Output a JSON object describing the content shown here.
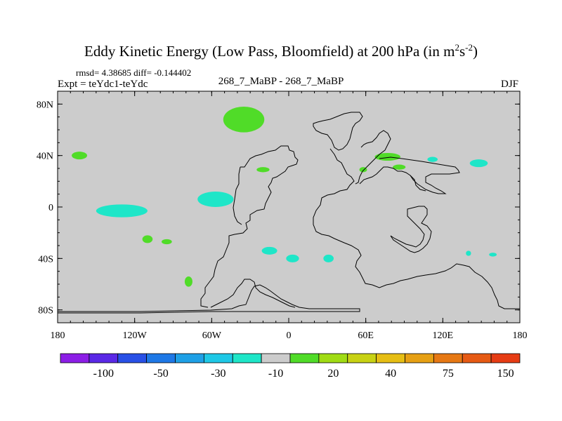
{
  "title_main": "Eddy Kinetic Energy (Low Pass, Bloomfield) at 200 hPa (in m",
  "title_sup1": "2",
  "title_mid": "s",
  "title_sup2": "-2",
  "title_end": ")",
  "stats": "rmsd= 4.38685 diff= -0.144402",
  "expt": "Expt = teYdc1-teYdc",
  "center_label": "268_7_MaBP - 268_7_MaBP",
  "season": "DJF",
  "chart_data": {
    "type": "heatmap",
    "title": "Eddy Kinetic Energy (Low Pass, Bloomfield) at 200 hPa (in m2s-2)",
    "xlabel": "",
    "ylabel": "",
    "xlim": [
      -180,
      180
    ],
    "ylim": [
      -90,
      90
    ],
    "x_ticks": [
      -180,
      -120,
      -60,
      0,
      60,
      120,
      180
    ],
    "x_tick_labels": [
      "180",
      "120W",
      "60W",
      "0",
      "60E",
      "120E",
      "180"
    ],
    "y_ticks": [
      80,
      40,
      0,
      -40,
      -80
    ],
    "y_tick_labels": [
      "80N",
      "40N",
      "0",
      "40S",
      "80S"
    ],
    "background_level": "-10 to 20",
    "colorbar": {
      "colors": [
        "#8c1ee6",
        "#5a28e6",
        "#2850e6",
        "#1e78e6",
        "#1ea0e6",
        "#1ec8e6",
        "#1ee6c8",
        "#cccccc",
        "#50dc28",
        "#a0dc14",
        "#c8d214",
        "#e6be14",
        "#e6a014",
        "#e67814",
        "#e65a14",
        "#e63c14"
      ],
      "label_positions": [
        1.5,
        3.5,
        5.5,
        7.5,
        9.5,
        11.5,
        13.5,
        15.5
      ],
      "labels": [
        "-100",
        "-50",
        "-30",
        "-10",
        "20",
        "40",
        "75",
        "150"
      ]
    },
    "anomalies": [
      {
        "lon": -163,
        "lat": 40,
        "rlon": 6,
        "rlat": 3,
        "color": "#50dc28"
      },
      {
        "lon": -35,
        "lat": 68,
        "rlon": 16,
        "rlat": 10,
        "color": "#50dc28"
      },
      {
        "lon": -20,
        "lat": 29,
        "rlon": 5,
        "rlat": 2,
        "color": "#50dc28"
      },
      {
        "lon": -110,
        "lat": -25,
        "rlon": 4,
        "rlat": 3,
        "color": "#50dc28"
      },
      {
        "lon": -95,
        "lat": -27,
        "rlon": 4,
        "rlat": 2,
        "color": "#50dc28"
      },
      {
        "lon": -78,
        "lat": -58,
        "rlon": 3,
        "rlat": 4,
        "color": "#50dc28"
      },
      {
        "lon": 58,
        "lat": 29,
        "rlon": 3,
        "rlat": 2,
        "color": "#50dc28"
      },
      {
        "lon": 77,
        "lat": 39,
        "rlon": 10,
        "rlat": 3,
        "color": "#50dc28"
      },
      {
        "lon": 86,
        "lat": 31,
        "rlon": 5,
        "rlat": 2,
        "color": "#50dc28"
      },
      {
        "lon": -130,
        "lat": -3,
        "rlon": 20,
        "rlat": 5,
        "color": "#1ee6c8"
      },
      {
        "lon": -57,
        "lat": 6,
        "rlon": 14,
        "rlat": 6,
        "color": "#1ee6c8"
      },
      {
        "lon": -15,
        "lat": -34,
        "rlon": 6,
        "rlat": 3,
        "color": "#1ee6c8"
      },
      {
        "lon": 3,
        "lat": -40,
        "rlon": 5,
        "rlat": 3,
        "color": "#1ee6c8"
      },
      {
        "lon": 31,
        "lat": -40,
        "rlon": 4,
        "rlat": 3,
        "color": "#1ee6c8"
      },
      {
        "lon": 112,
        "lat": 37,
        "rlon": 4,
        "rlat": 2,
        "color": "#1ee6c8"
      },
      {
        "lon": 148,
        "lat": 34,
        "rlon": 7,
        "rlat": 3,
        "color": "#1ee6c8"
      },
      {
        "lon": 140,
        "lat": -36,
        "rlon": 2,
        "rlat": 2,
        "color": "#1ee6c8"
      },
      {
        "lon": 159,
        "lat": -37,
        "rlon": 3,
        "rlat": 1.5,
        "color": "#1ee6c8"
      }
    ]
  }
}
